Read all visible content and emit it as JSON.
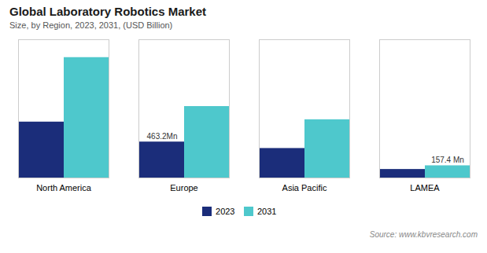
{
  "chart_data": {
    "type": "bar",
    "title": "Global Laboratory Robotics Market",
    "subtitle": "Size, by Region, 2023, 2031, (USD Billion)",
    "source": "Source: www.kbvresearch.com",
    "categories": [
      "North America",
      "Europe",
      "Asia Pacific",
      "LAMEA"
    ],
    "series": [
      {
        "name": "2023",
        "color": "#1b2d7a",
        "values": [
          0.72,
          0.463,
          0.38,
          0.11
        ]
      },
      {
        "name": "2031",
        "color": "#4ec8cc",
        "values": [
          1.55,
          0.92,
          0.75,
          0.1574
        ]
      }
    ],
    "ylim": [
      0,
      1.78
    ],
    "tick_labels": "x",
    "grid": false,
    "legend": "bottom",
    "annotations": [
      {
        "text": "463.2Mn",
        "category": "Europe",
        "series": "2023"
      },
      {
        "text": "157.4 Mn",
        "category": "LAMEA",
        "series": "2031"
      }
    ]
  }
}
